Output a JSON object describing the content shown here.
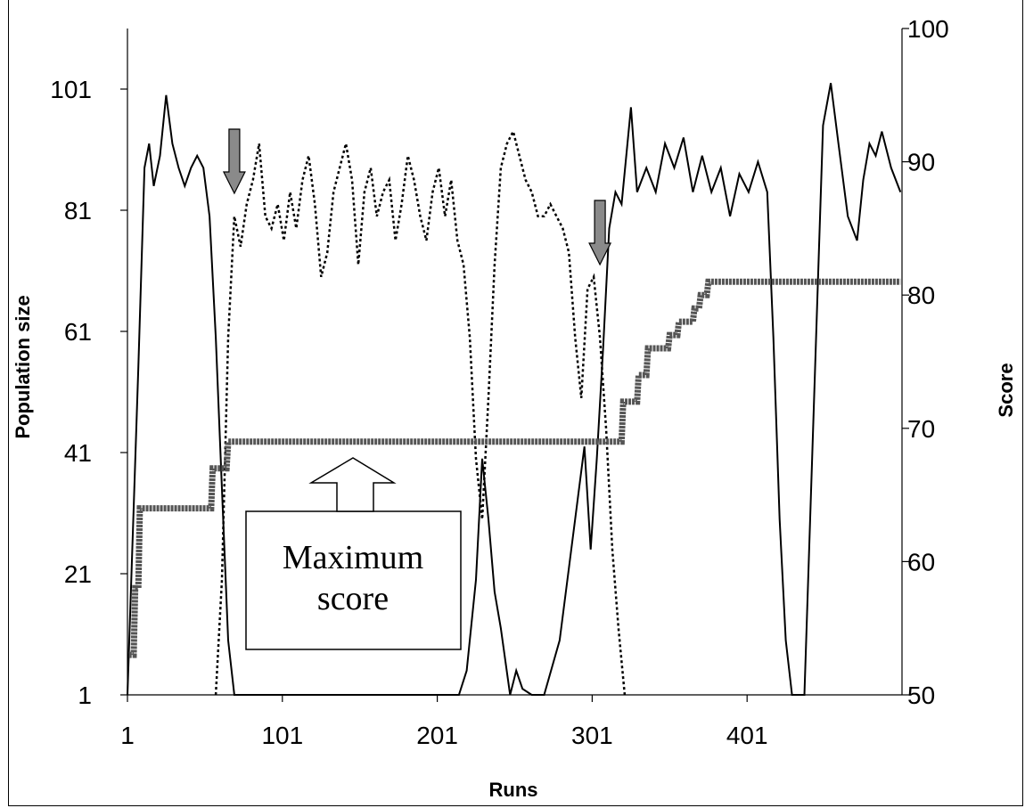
{
  "chart_data": {
    "type": "line",
    "xlabel": "Runs",
    "ylabel": "Population size",
    "y2label": "Score",
    "xlim": [
      1,
      501
    ],
    "ylim": [
      1,
      111
    ],
    "y2lim": [
      50,
      100
    ],
    "x_ticks": [
      1,
      101,
      201,
      301,
      401
    ],
    "y_ticks": [
      1,
      21,
      41,
      61,
      81,
      101
    ],
    "y2_ticks": [
      50,
      60,
      70,
      80,
      90,
      100
    ],
    "grid": false,
    "legend": "none",
    "annotations": [
      {
        "label": "Maximum",
        "label2": "score",
        "points_to_y2": 69
      },
      {
        "type": "down-arrow",
        "x": 70
      },
      {
        "type": "down-arrow",
        "x": 306
      }
    ],
    "series": [
      {
        "style": "solid",
        "color": "#000000",
        "axis": "left",
        "x": [
          1,
          8,
          12,
          15,
          18,
          22,
          26,
          30,
          34,
          38,
          42,
          46,
          50,
          54,
          58,
          62,
          66,
          70,
          72,
          215,
          220,
          226,
          230,
          234,
          238,
          242,
          248,
          252,
          256,
          262,
          270,
          280,
          290,
          296,
          300,
          304,
          308,
          312,
          316,
          320,
          326,
          330,
          336,
          342,
          348,
          354,
          360,
          366,
          372,
          378,
          384,
          390,
          396,
          402,
          408,
          414,
          418,
          422,
          426,
          430,
          434,
          438,
          450,
          455,
          460,
          466,
          472,
          476,
          480,
          484,
          488,
          494,
          500
        ],
        "y": [
          1,
          55,
          88,
          92,
          85,
          90,
          100,
          92,
          88,
          85,
          88,
          90,
          88,
          80,
          60,
          35,
          10,
          1,
          1,
          1,
          5,
          20,
          40,
          30,
          18,
          12,
          1,
          5,
          2,
          1,
          1,
          10,
          30,
          42,
          25,
          40,
          58,
          78,
          84,
          82,
          98,
          84,
          88,
          84,
          92,
          88,
          93,
          84,
          90,
          84,
          88,
          80,
          87,
          84,
          89,
          84,
          60,
          30,
          10,
          1,
          1,
          1,
          95,
          102,
          92,
          80,
          76,
          86,
          92,
          90,
          94,
          88,
          84
        ]
      },
      {
        "style": "dotted",
        "color": "#000000",
        "axis": "left",
        "x": [
          58,
          62,
          66,
          70,
          74,
          78,
          82,
          86,
          90,
          94,
          98,
          102,
          106,
          110,
          114,
          118,
          122,
          126,
          130,
          134,
          138,
          142,
          146,
          150,
          154,
          158,
          162,
          166,
          170,
          174,
          178,
          182,
          186,
          190,
          194,
          198,
          202,
          206,
          210,
          214,
          218,
          222,
          226,
          230,
          234,
          238,
          242,
          246,
          250,
          254,
          258,
          262,
          266,
          270,
          274,
          278,
          282,
          286,
          290,
          294,
          298,
          302,
          306,
          310,
          314,
          318,
          322
        ],
        "y": [
          1,
          20,
          60,
          80,
          75,
          82,
          86,
          92,
          80,
          78,
          82,
          76,
          84,
          78,
          86,
          90,
          82,
          70,
          74,
          84,
          88,
          92,
          86,
          72,
          84,
          88,
          80,
          84,
          86,
          76,
          82,
          90,
          86,
          80,
          76,
          84,
          88,
          80,
          86,
          76,
          72,
          60,
          40,
          30,
          50,
          72,
          88,
          92,
          94,
          90,
          86,
          84,
          80,
          80,
          82,
          80,
          78,
          74,
          60,
          50,
          68,
          70,
          60,
          45,
          25,
          12,
          1
        ]
      },
      {
        "style": "dashed-thick",
        "color": "#555555",
        "axis": "right",
        "x": [
          2,
          5,
          6,
          8,
          9,
          55,
          56,
          65,
          66,
          320,
          321,
          330,
          331,
          336,
          337,
          350,
          351,
          356,
          357,
          366,
          367,
          370,
          371,
          375,
          376,
          400,
          401,
          500
        ],
        "y": [
          53,
          53,
          58,
          58,
          64,
          64,
          67,
          67,
          69,
          69,
          72,
          72,
          74,
          74,
          76,
          76,
          77,
          77,
          78,
          78,
          79,
          79,
          80,
          80,
          81,
          81,
          81,
          81
        ]
      }
    ]
  }
}
